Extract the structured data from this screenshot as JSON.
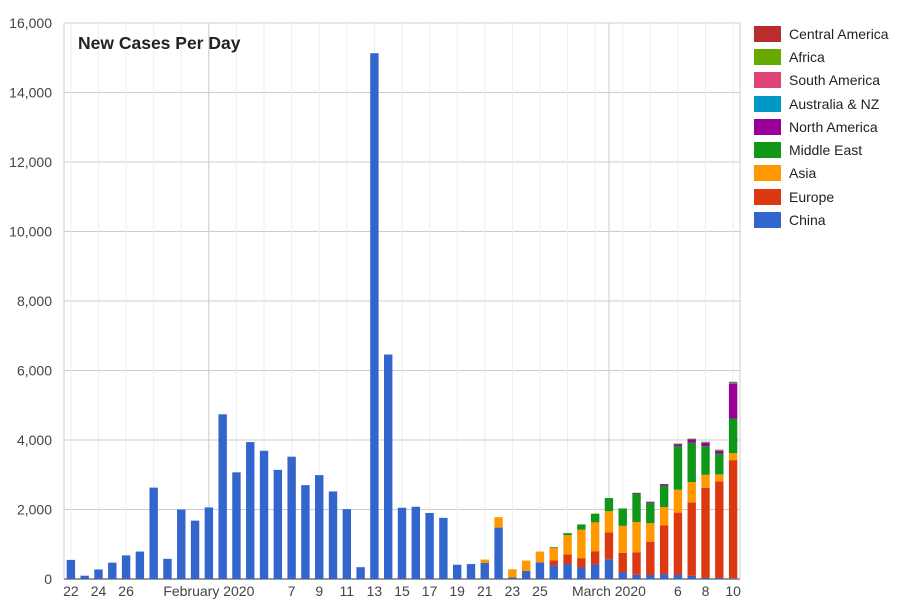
{
  "chart_data": {
    "type": "bar",
    "stacked": true,
    "title": "New Cases Per Day",
    "xlabel": "",
    "ylabel": "",
    "ylim": [
      0,
      16000
    ],
    "y_ticks": [
      "0",
      "2,000",
      "4,000",
      "6,000",
      "8,000",
      "10,000",
      "12,000",
      "14,000",
      "16,000"
    ],
    "grid": true,
    "legend_position": "right",
    "categories": [
      "2020-01-22",
      "2020-01-23",
      "2020-01-24",
      "2020-01-25",
      "2020-01-26",
      "2020-01-27",
      "2020-01-28",
      "2020-01-29",
      "2020-01-30",
      "2020-01-31",
      "2020-02-01",
      "2020-02-02",
      "2020-02-03",
      "2020-02-04",
      "2020-02-05",
      "2020-02-06",
      "2020-02-07",
      "2020-02-08",
      "2020-02-09",
      "2020-02-10",
      "2020-02-11",
      "2020-02-12",
      "2020-02-13",
      "2020-02-14",
      "2020-02-15",
      "2020-02-16",
      "2020-02-17",
      "2020-02-18",
      "2020-02-19",
      "2020-02-20",
      "2020-02-21",
      "2020-02-22",
      "2020-02-23",
      "2020-02-24",
      "2020-02-25",
      "2020-02-26",
      "2020-02-27",
      "2020-02-28",
      "2020-02-29",
      "2020-03-01",
      "2020-03-02",
      "2020-03-03",
      "2020-03-04",
      "2020-03-05",
      "2020-03-06",
      "2020-03-07",
      "2020-03-08",
      "2020-03-09",
      "2020-03-10"
    ],
    "x_tick_labels": [
      {
        "index": 0,
        "label": "22"
      },
      {
        "index": 2,
        "label": "24"
      },
      {
        "index": 4,
        "label": "26"
      },
      {
        "index": 10,
        "label": "February 2020"
      },
      {
        "index": 16,
        "label": "7"
      },
      {
        "index": 18,
        "label": "9"
      },
      {
        "index": 20,
        "label": "11"
      },
      {
        "index": 22,
        "label": "13"
      },
      {
        "index": 24,
        "label": "15"
      },
      {
        "index": 26,
        "label": "17"
      },
      {
        "index": 28,
        "label": "19"
      },
      {
        "index": 30,
        "label": "21"
      },
      {
        "index": 32,
        "label": "23"
      },
      {
        "index": 34,
        "label": "25"
      },
      {
        "index": 39,
        "label": "March 2020"
      },
      {
        "index": 44,
        "label": "6"
      },
      {
        "index": 46,
        "label": "8"
      },
      {
        "index": 48,
        "label": "10"
      }
    ],
    "month_separators": [
      10,
      39
    ],
    "series": [
      {
        "name": "China",
        "color": "#3366cc",
        "values": [
          550,
          95,
          275,
          470,
          680,
          790,
          2630,
          580,
          2000,
          1680,
          2060,
          4740,
          3070,
          3940,
          3690,
          3140,
          3520,
          2700,
          2990,
          2520,
          2010,
          340,
          15130,
          6460,
          2050,
          2080,
          1900,
          1760,
          410,
          430,
          460,
          1480,
          50,
          230,
          480,
          390,
          430,
          330,
          420,
          570,
          200,
          120,
          115,
          140,
          130,
          90,
          30,
          30,
          20
        ]
      },
      {
        "name": "Europe",
        "color": "#dc3912",
        "values": [
          0,
          0,
          0,
          0,
          0,
          0,
          0,
          0,
          0,
          0,
          0,
          0,
          0,
          0,
          0,
          0,
          0,
          0,
          0,
          0,
          0,
          0,
          0,
          0,
          0,
          0,
          0,
          0,
          0,
          0,
          0,
          0,
          0,
          0,
          0,
          150,
          280,
          270,
          380,
          770,
          550,
          650,
          960,
          1400,
          1780,
          2110,
          2590,
          2780,
          3400
        ]
      },
      {
        "name": "Asia",
        "color": "#ff9900",
        "values": [
          0,
          0,
          0,
          0,
          0,
          0,
          0,
          0,
          0,
          0,
          0,
          0,
          0,
          0,
          0,
          0,
          0,
          0,
          0,
          0,
          0,
          0,
          0,
          0,
          0,
          0,
          0,
          0,
          0,
          0,
          100,
          300,
          230,
          300,
          310,
          360,
          550,
          820,
          830,
          610,
          780,
          870,
          530,
          530,
          660,
          590,
          380,
          200,
          200
        ]
      },
      {
        "name": "Middle East",
        "color": "#109618",
        "values": [
          0,
          0,
          0,
          0,
          0,
          0,
          0,
          0,
          0,
          0,
          0,
          0,
          0,
          0,
          0,
          0,
          0,
          0,
          0,
          0,
          0,
          0,
          0,
          0,
          0,
          0,
          0,
          0,
          0,
          0,
          0,
          0,
          0,
          0,
          0,
          20,
          60,
          150,
          250,
          380,
          500,
          820,
          590,
          620,
          1250,
          1130,
          820,
          600,
          1000
        ]
      },
      {
        "name": "North America",
        "color": "#990099",
        "values": [
          0,
          0,
          0,
          0,
          0,
          0,
          0,
          0,
          0,
          0,
          0,
          0,
          0,
          0,
          0,
          0,
          0,
          0,
          0,
          0,
          0,
          0,
          0,
          0,
          0,
          0,
          0,
          0,
          0,
          0,
          0,
          0,
          0,
          0,
          0,
          0,
          0,
          0,
          0,
          0,
          0,
          20,
          30,
          40,
          60,
          100,
          100,
          80,
          1000
        ]
      },
      {
        "name": "Australia & NZ",
        "color": "#0099c6",
        "values": [
          0,
          0,
          0,
          0,
          0,
          0,
          0,
          0,
          0,
          0,
          0,
          0,
          0,
          0,
          0,
          0,
          0,
          0,
          0,
          0,
          0,
          0,
          0,
          0,
          0,
          0,
          0,
          0,
          0,
          0,
          0,
          0,
          0,
          0,
          0,
          0,
          0,
          0,
          0,
          0,
          0,
          0,
          0,
          0,
          10,
          10,
          15,
          15,
          20
        ]
      },
      {
        "name": "South America",
        "color": "#dd4477",
        "values": [
          0,
          0,
          0,
          0,
          0,
          0,
          0,
          0,
          0,
          0,
          0,
          0,
          0,
          0,
          0,
          0,
          0,
          0,
          0,
          0,
          0,
          0,
          0,
          0,
          0,
          0,
          0,
          0,
          0,
          0,
          0,
          0,
          0,
          0,
          0,
          0,
          0,
          0,
          0,
          0,
          0,
          0,
          0,
          0,
          5,
          5,
          10,
          10,
          20
        ]
      },
      {
        "name": "Africa",
        "color": "#66aa00",
        "values": [
          0,
          0,
          0,
          0,
          0,
          0,
          0,
          0,
          0,
          0,
          0,
          0,
          0,
          0,
          0,
          0,
          0,
          0,
          0,
          0,
          0,
          0,
          0,
          0,
          0,
          0,
          0,
          0,
          0,
          0,
          0,
          0,
          0,
          0,
          0,
          0,
          0,
          0,
          0,
          0,
          0,
          0,
          0,
          0,
          5,
          5,
          5,
          10,
          10
        ]
      },
      {
        "name": "Central America",
        "color": "#b82e2e",
        "values": [
          0,
          0,
          0,
          0,
          0,
          0,
          0,
          0,
          0,
          0,
          0,
          0,
          0,
          0,
          0,
          0,
          0,
          0,
          0,
          0,
          0,
          0,
          0,
          0,
          0,
          0,
          0,
          0,
          0,
          0,
          0,
          0,
          0,
          0,
          0,
          0,
          0,
          0,
          0,
          0,
          0,
          0,
          0,
          0,
          0,
          0,
          0,
          0,
          5
        ]
      }
    ],
    "legend_order": [
      "Central America",
      "Africa",
      "South America",
      "Australia & NZ",
      "North America",
      "Middle East",
      "Asia",
      "Europe",
      "China"
    ]
  }
}
